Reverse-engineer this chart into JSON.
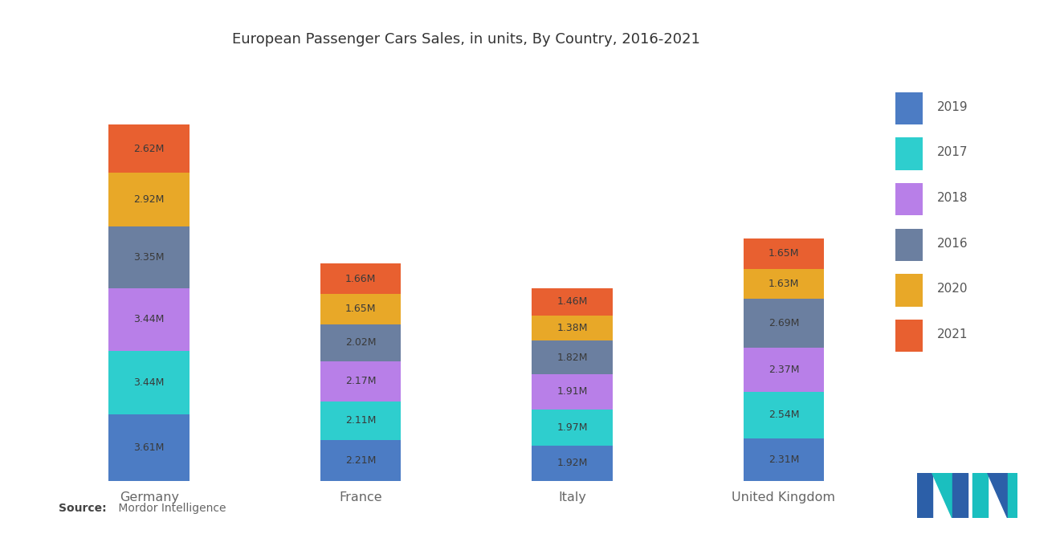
{
  "title": "European Passenger Cars Sales, in units, By Country, 2016-2021",
  "countries": [
    "Germany",
    "France",
    "Italy",
    "United Kingdom"
  ],
  "colors": {
    "2019": "#4C7CC4",
    "2017": "#2ECECE",
    "2018": "#B87FE8",
    "2016": "#6B7FA0",
    "2020": "#E8A828",
    "2021": "#E86030"
  },
  "data": {
    "Germany": {
      "2019": 3.61,
      "2017": 3.44,
      "2018": 3.44,
      "2016": 3.35,
      "2020": 2.92,
      "2021": 2.62
    },
    "France": {
      "2019": 2.21,
      "2017": 2.11,
      "2018": 2.17,
      "2016": 2.02,
      "2020": 1.65,
      "2021": 1.66
    },
    "Italy": {
      "2019": 1.92,
      "2017": 1.97,
      "2018": 1.91,
      "2016": 1.82,
      "2020": 1.38,
      "2021": 1.46
    },
    "United Kingdom": {
      "2019": 2.31,
      "2017": 2.54,
      "2018": 2.37,
      "2016": 2.69,
      "2020": 1.63,
      "2021": 1.65
    }
  },
  "background_color": "#FFFFFF",
  "bar_width": 0.42,
  "legend_order": [
    "2019",
    "2017",
    "2018",
    "2016",
    "2020",
    "2021"
  ],
  "stack_order": [
    "2019",
    "2017",
    "2018",
    "2016",
    "2020",
    "2021"
  ]
}
